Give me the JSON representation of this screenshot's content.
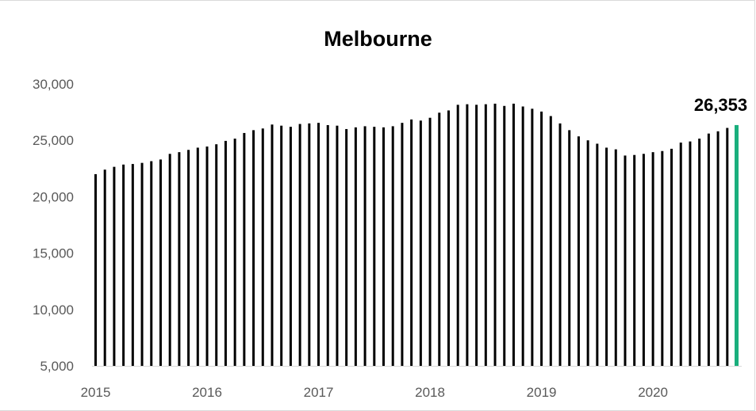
{
  "chart_data": {
    "type": "bar",
    "title": "Melbourne",
    "xlabel": "",
    "ylabel": "",
    "ylim": [
      5000,
      30000
    ],
    "y_ticks": [
      "5,000",
      "10,000",
      "15,000",
      "20,000",
      "25,000",
      "30,000"
    ],
    "y_tick_values": [
      5000,
      10000,
      15000,
      20000,
      25000,
      30000
    ],
    "x_ticks": [
      "2015",
      "2016",
      "2017",
      "2018",
      "2019",
      "2020"
    ],
    "grid": false,
    "legend": "none",
    "bar_color": "#000000",
    "highlight_color": "#1aaf7d",
    "last_value_label": "26,353",
    "values": [
      22000,
      22400,
      22650,
      22850,
      22900,
      23000,
      23150,
      23300,
      23800,
      23950,
      24150,
      24350,
      24450,
      24650,
      24950,
      25150,
      25650,
      25900,
      26050,
      26400,
      26300,
      26200,
      26450,
      26500,
      26550,
      26350,
      26300,
      26000,
      26150,
      26250,
      26200,
      26150,
      26250,
      26550,
      26850,
      26750,
      27000,
      27450,
      27650,
      28150,
      28200,
      28150,
      28200,
      28250,
      28050,
      28250,
      28000,
      27800,
      27550,
      27150,
      26500,
      25900,
      25350,
      25000,
      24700,
      24350,
      24200,
      23650,
      23700,
      23800,
      23950,
      24050,
      24250,
      24800,
      24900,
      25150,
      25600,
      25800,
      26100,
      26353
    ]
  }
}
